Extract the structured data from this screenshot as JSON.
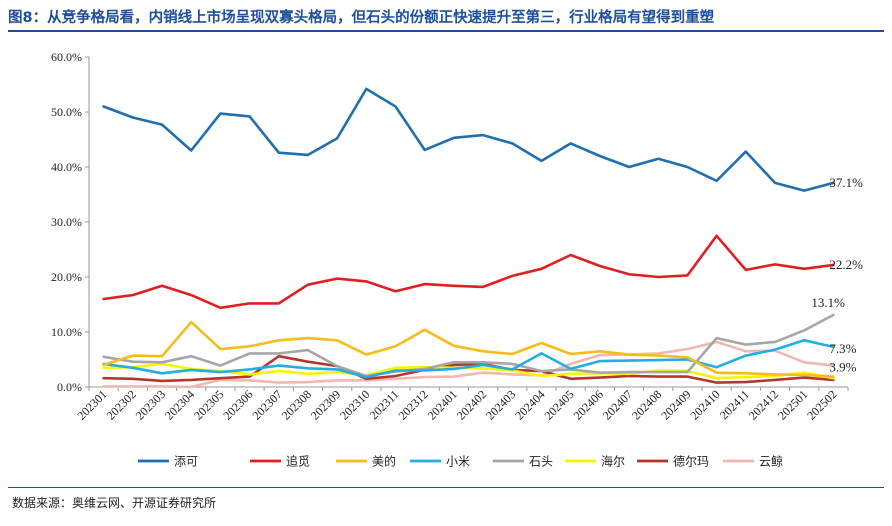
{
  "header": {
    "title": "图8：从竞争格局看，内销线上市场呈现双寡头格局，但石头的份额正快速提升至第三，行业格局有望得到重塑"
  },
  "footer": {
    "source": "数据来源：奥维云网、开源证券研究所"
  },
  "chart_data": {
    "type": "line",
    "title": "",
    "xlabel": "",
    "ylabel": "",
    "ylim": [
      0,
      60
    ],
    "y_ticks": [
      "0.0%",
      "10.0%",
      "20.0%",
      "30.0%",
      "40.0%",
      "50.0%",
      "60.0%"
    ],
    "grid": false,
    "legend_position": "bottom",
    "categories": [
      "202301",
      "202302",
      "202303",
      "202304",
      "202305",
      "202306",
      "202307",
      "202308",
      "202309",
      "202310",
      "202311",
      "202312",
      "202401",
      "202402",
      "202403",
      "202404",
      "202405",
      "202406",
      "202407",
      "202408",
      "202409",
      "202410",
      "202411",
      "202412",
      "202501",
      "202502"
    ],
    "series": [
      {
        "name": "添可",
        "color": "#1f6fb2",
        "end_label": "37.1%",
        "values": [
          51.0,
          49.0,
          47.7,
          43.0,
          49.7,
          49.2,
          42.6,
          42.2,
          45.2,
          54.2,
          51.0,
          43.1,
          45.3,
          45.8,
          44.3,
          41.1,
          44.3,
          42.0,
          40.0,
          41.5,
          40.0,
          37.5,
          42.8,
          37.1,
          35.7,
          37.1
        ]
      },
      {
        "name": "追觅",
        "color": "#e02020",
        "end_label": "22.2%",
        "values": [
          16.0,
          16.7,
          18.4,
          16.7,
          14.4,
          15.2,
          15.2,
          18.6,
          19.7,
          19.2,
          17.4,
          18.7,
          18.4,
          18.2,
          20.2,
          21.5,
          24.0,
          22.0,
          20.5,
          20.0,
          20.3,
          27.5,
          21.3,
          22.3,
          21.5,
          22.2
        ]
      },
      {
        "name": "美的",
        "color": "#f7bc1c",
        "values": [
          4.0,
          5.7,
          5.6,
          11.8,
          6.9,
          7.4,
          8.5,
          8.9,
          8.5,
          5.9,
          7.4,
          10.4,
          7.5,
          6.5,
          6.0,
          8.0,
          6.0,
          6.5,
          5.9,
          5.7,
          5.4,
          2.6,
          2.5,
          2.3,
          2.2,
          1.9
        ]
      },
      {
        "name": "小米",
        "color": "#22aee5",
        "end_label": "7.3%",
        "values": [
          4.2,
          3.5,
          2.5,
          3.1,
          2.7,
          3.2,
          3.9,
          3.4,
          3.2,
          1.8,
          3.0,
          3.0,
          3.3,
          4.0,
          3.2,
          6.1,
          3.3,
          4.7,
          4.8,
          4.9,
          5.0,
          3.6,
          5.7,
          6.8,
          8.5,
          7.3
        ]
      },
      {
        "name": "石头",
        "color": "#a6a6a6",
        "end_label": "13.1%",
        "values": [
          5.5,
          4.6,
          4.5,
          5.6,
          3.9,
          6.1,
          6.1,
          6.7,
          3.8,
          2.0,
          2.8,
          3.3,
          4.5,
          4.5,
          4.2,
          2.9,
          3.2,
          2.6,
          2.7,
          2.7,
          2.7,
          8.9,
          7.7,
          8.2,
          10.3,
          13.1
        ]
      },
      {
        "name": "海尔",
        "color": "#f5f500",
        "values": [
          3.5,
          3.6,
          4.2,
          3.3,
          2.9,
          2.3,
          2.9,
          2.4,
          2.7,
          2.1,
          3.5,
          3.6,
          3.5,
          3.4,
          3.0,
          2.0,
          2.4,
          2.5,
          2.4,
          3.0,
          2.9,
          1.6,
          1.8,
          2.0,
          2.6,
          1.6
        ]
      },
      {
        "name": "德尔玛",
        "color": "#b2382e",
        "values": [
          1.6,
          1.5,
          1.1,
          1.3,
          1.6,
          1.9,
          5.6,
          4.6,
          3.8,
          1.5,
          2.0,
          3.1,
          4.0,
          4.2,
          3.1,
          2.9,
          1.5,
          1.7,
          2.0,
          1.9,
          1.9,
          0.8,
          0.9,
          1.3,
          1.7,
          1.3
        ]
      },
      {
        "name": "云鲸",
        "color": "#f0b8b0",
        "end_label": "3.9%",
        "values": [
          0.1,
          0.1,
          0.1,
          0.0,
          1.3,
          1.2,
          0.8,
          0.9,
          1.2,
          1.2,
          1.5,
          1.8,
          1.9,
          2.6,
          2.3,
          2.1,
          4.2,
          5.8,
          5.9,
          6.1,
          6.9,
          8.2,
          6.5,
          6.6,
          4.5,
          3.9
        ]
      }
    ]
  }
}
